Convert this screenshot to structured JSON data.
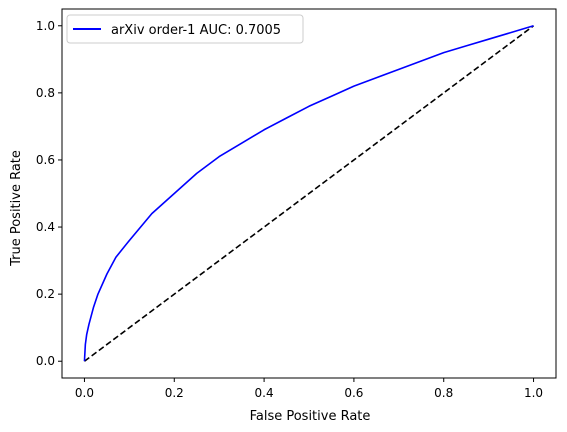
{
  "chart_data": {
    "type": "line",
    "title": "",
    "xlabel": "False Positive Rate",
    "ylabel": "True Positive Rate",
    "xlim": [
      -0.05,
      1.05
    ],
    "ylim": [
      -0.05,
      1.05
    ],
    "xticks": [
      0.0,
      0.2,
      0.4,
      0.6,
      0.8,
      1.0
    ],
    "xtick_labels": [
      "0.0",
      "0.2",
      "0.4",
      "0.6",
      "0.8",
      "1.0"
    ],
    "yticks": [
      0.0,
      0.2,
      0.4,
      0.6,
      0.8,
      1.0
    ],
    "ytick_labels": [
      "0.0",
      "0.2",
      "0.4",
      "0.6",
      "0.8",
      "1.0"
    ],
    "grid": false,
    "legend_position": "top-left",
    "series": [
      {
        "name": "arXiv order-1 AUC: 0.7005",
        "color": "#0000ff",
        "line_style": "solid",
        "x": [
          0.0,
          0.002,
          0.005,
          0.01,
          0.02,
          0.03,
          0.05,
          0.07,
          0.1,
          0.15,
          0.2,
          0.25,
          0.3,
          0.35,
          0.4,
          0.45,
          0.5,
          0.55,
          0.6,
          0.65,
          0.7,
          0.75,
          0.8,
          0.85,
          0.9,
          0.95,
          1.0
        ],
        "y": [
          0.0,
          0.05,
          0.08,
          0.11,
          0.16,
          0.2,
          0.26,
          0.31,
          0.36,
          0.44,
          0.5,
          0.56,
          0.61,
          0.65,
          0.69,
          0.725,
          0.76,
          0.79,
          0.82,
          0.845,
          0.87,
          0.895,
          0.92,
          0.94,
          0.96,
          0.98,
          1.0
        ]
      },
      {
        "name": "",
        "color": "#000000",
        "line_style": "dashed",
        "x": [
          0.0,
          1.0
        ],
        "y": [
          0.0,
          1.0
        ]
      }
    ]
  }
}
